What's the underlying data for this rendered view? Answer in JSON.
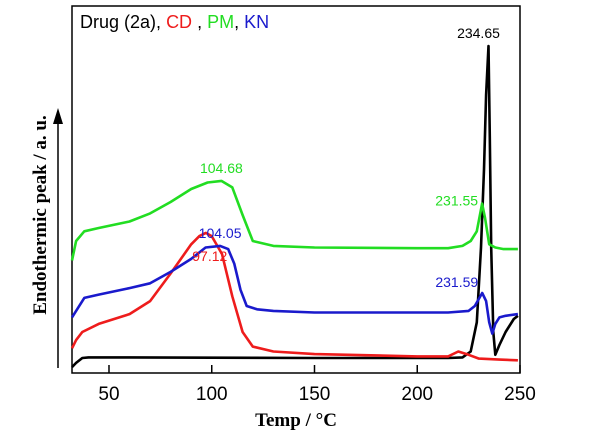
{
  "chart_data": {
    "type": "line",
    "xlabel": "Temp / °C",
    "ylabel": "Endothermic peak / a. u.",
    "xlim": [
      32,
      250
    ],
    "xticks": [
      50,
      100,
      150,
      200,
      250
    ],
    "grid": false,
    "legend_placement": "top-left",
    "legend": [
      {
        "text": "Drug (2a)",
        "color": "#000000"
      },
      {
        "text": "CD",
        "color": "#ee1c1c"
      },
      {
        "text": "PM",
        "color": "#22dd22"
      },
      {
        "text": "KN",
        "color": "#1a1acc"
      }
    ],
    "legend_separators": [
      ",",
      ",",
      ","
    ],
    "series": [
      {
        "key": "drug",
        "color": "#000000",
        "x": [
          32,
          34,
          37,
          40,
          60,
          100,
          150,
          200,
          215,
          222,
          226,
          229,
          231,
          232.5,
          233.5,
          234.65,
          235.3,
          236,
          237,
          238,
          240,
          243,
          247,
          249
        ],
        "y": [
          0.012,
          0.025,
          0.04,
          0.042,
          0.042,
          0.041,
          0.04,
          0.04,
          0.04,
          0.042,
          0.06,
          0.15,
          0.38,
          0.62,
          0.85,
          1.0,
          0.72,
          0.38,
          0.12,
          0.05,
          0.08,
          0.12,
          0.16,
          0.17
        ]
      },
      {
        "key": "cd",
        "color": "#ee1c1c",
        "x": [
          32,
          34,
          37,
          45,
          60,
          70,
          80,
          90,
          94,
          97.12,
          100,
          105,
          110,
          115,
          120,
          130,
          150,
          200,
          215,
          220,
          225,
          230,
          240,
          249
        ],
        "y": [
          0.07,
          0.095,
          0.12,
          0.145,
          0.175,
          0.215,
          0.3,
          0.39,
          0.415,
          0.425,
          0.415,
          0.36,
          0.23,
          0.12,
          0.075,
          0.06,
          0.052,
          0.045,
          0.045,
          0.06,
          0.05,
          0.038,
          0.035,
          0.033
        ]
      },
      {
        "key": "kn",
        "color": "#1a1acc",
        "x": [
          32,
          34,
          38,
          45,
          60,
          70,
          80,
          90,
          97,
          104.05,
          108,
          111,
          114,
          117,
          122,
          130,
          150,
          200,
          215,
          225,
          228,
          231.59,
          233.5,
          235,
          236.5,
          238,
          240,
          243,
          249
        ],
        "y": [
          0.165,
          0.185,
          0.225,
          0.235,
          0.255,
          0.27,
          0.305,
          0.345,
          0.38,
          0.385,
          0.375,
          0.33,
          0.25,
          0.2,
          0.19,
          0.185,
          0.18,
          0.18,
          0.18,
          0.185,
          0.2,
          0.24,
          0.215,
          0.15,
          0.115,
          0.145,
          0.165,
          0.17,
          0.175
        ]
      },
      {
        "key": "pm",
        "color": "#22dd22",
        "x": [
          32,
          34,
          38,
          45,
          60,
          70,
          80,
          90,
          98,
          104.68,
          110,
          115,
          120,
          130,
          150,
          200,
          215,
          222,
          226,
          229,
          231.55,
          233,
          235,
          238,
          242,
          249
        ],
        "y": [
          0.34,
          0.4,
          0.43,
          0.44,
          0.46,
          0.485,
          0.52,
          0.56,
          0.58,
          0.585,
          0.565,
          0.48,
          0.4,
          0.385,
          0.38,
          0.378,
          0.378,
          0.385,
          0.4,
          0.43,
          0.515,
          0.47,
          0.39,
          0.38,
          0.375,
          0.375
        ]
      }
    ],
    "annotations": [
      {
        "text": "234.65",
        "x": 234.65,
        "color": "#000000",
        "series": "drug"
      },
      {
        "text": "97.12",
        "x": 97.12,
        "color": "#ee1c1c",
        "series": "cd"
      },
      {
        "text": "104.05",
        "x": 104.05,
        "color": "#1a1acc",
        "series": "kn"
      },
      {
        "text": "104.68",
        "x": 104.68,
        "color": "#22dd22",
        "series": "pm"
      },
      {
        "text": "231.55",
        "x": 231.55,
        "color": "#22dd22",
        "series": "pm"
      },
      {
        "text": "231.59",
        "x": 231.59,
        "color": "#1a1acc",
        "series": "kn"
      }
    ]
  }
}
